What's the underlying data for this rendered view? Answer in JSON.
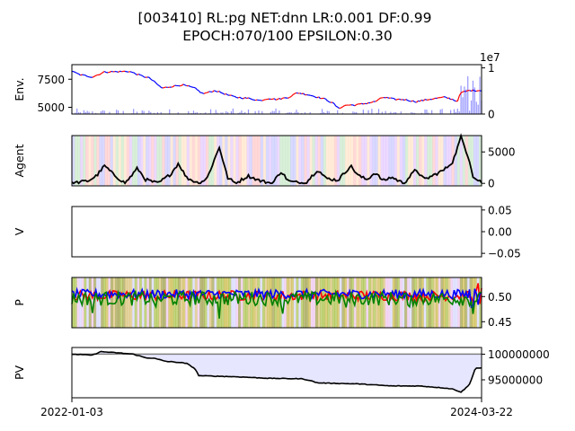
{
  "chart_data": {
    "type": "line",
    "title": "[003410] RL:pg NET:dnn LR:0.001 DF:0.99",
    "subtitle": "EPOCH:070/100 EPSILON:0.30",
    "x_ticks": [
      "2022-01-03",
      "2024-03-22"
    ],
    "colors": {
      "axis": "#000000",
      "up": "#ff0000",
      "down": "#0000ff",
      "volume": "#7a7aff",
      "value_line": "#000000",
      "p_red": "#ff0000",
      "p_blue": "#0000ff",
      "p_green": "#008000",
      "pv_fill": "#e6e6ff",
      "pv_ref": "#808080"
    },
    "panels": [
      {
        "id": "env",
        "ylabel": "Env.",
        "left_ticks": [
          "5000",
          "7500"
        ],
        "left_tick_values": [
          5000,
          7500
        ],
        "left_range": [
          4400,
          8800
        ],
        "right_ticks": [
          "0",
          "1"
        ],
        "right_tick_values": [
          0,
          1
        ],
        "right_range": [
          0,
          1.07
        ],
        "right_offset_label": "1e7",
        "price_anchors": [
          [
            0,
            8200
          ],
          [
            0.02,
            7900
          ],
          [
            0.05,
            7700
          ],
          [
            0.08,
            8150
          ],
          [
            0.14,
            8200
          ],
          [
            0.17,
            7800
          ],
          [
            0.19,
            7600
          ],
          [
            0.22,
            6700
          ],
          [
            0.25,
            6900
          ],
          [
            0.27,
            7000
          ],
          [
            0.3,
            6700
          ],
          [
            0.32,
            6200
          ],
          [
            0.35,
            6500
          ],
          [
            0.38,
            6100
          ],
          [
            0.4,
            5900
          ],
          [
            0.43,
            5800
          ],
          [
            0.46,
            5600
          ],
          [
            0.48,
            5800
          ],
          [
            0.5,
            5700
          ],
          [
            0.53,
            5900
          ],
          [
            0.55,
            6300
          ],
          [
            0.58,
            6100
          ],
          [
            0.6,
            5900
          ],
          [
            0.62,
            5700
          ],
          [
            0.64,
            5300
          ],
          [
            0.65,
            4900
          ],
          [
            0.67,
            5200
          ],
          [
            0.69,
            5200
          ],
          [
            0.71,
            5300
          ],
          [
            0.74,
            5500
          ],
          [
            0.76,
            5900
          ],
          [
            0.79,
            5700
          ],
          [
            0.81,
            5700
          ],
          [
            0.84,
            5500
          ],
          [
            0.87,
            5700
          ],
          [
            0.89,
            5800
          ],
          [
            0.91,
            5900
          ],
          [
            0.93,
            5700
          ],
          [
            0.94,
            5500
          ],
          [
            0.95,
            6300
          ],
          [
            0.97,
            6500
          ],
          [
            1.0,
            6500
          ]
        ],
        "volume_note": "volume bars scaled to 1e7"
      },
      {
        "id": "agent",
        "ylabel": "Agent",
        "right_ticks": [
          "0",
          "5000"
        ],
        "right_tick_values": [
          0,
          5000
        ],
        "right_range": [
          -400,
          7600
        ],
        "value_anchors": [
          [
            0,
            0
          ],
          [
            0.04,
            400
          ],
          [
            0.06,
            1200
          ],
          [
            0.08,
            2800
          ],
          [
            0.1,
            1500
          ],
          [
            0.13,
            0
          ],
          [
            0.16,
            2400
          ],
          [
            0.18,
            600
          ],
          [
            0.21,
            0
          ],
          [
            0.24,
            1400
          ],
          [
            0.26,
            3200
          ],
          [
            0.28,
            900
          ],
          [
            0.31,
            0
          ],
          [
            0.33,
            800
          ],
          [
            0.36,
            5800
          ],
          [
            0.38,
            900
          ],
          [
            0.4,
            0
          ],
          [
            0.43,
            1200
          ],
          [
            0.46,
            400
          ],
          [
            0.49,
            0
          ],
          [
            0.51,
            1900
          ],
          [
            0.53,
            300
          ],
          [
            0.57,
            0
          ],
          [
            0.6,
            2200
          ],
          [
            0.62,
            800
          ],
          [
            0.65,
            500
          ],
          [
            0.68,
            2800
          ],
          [
            0.7,
            1200
          ],
          [
            0.72,
            600
          ],
          [
            0.74,
            1700
          ],
          [
            0.76,
            400
          ],
          [
            0.78,
            1000
          ],
          [
            0.81,
            0
          ],
          [
            0.84,
            2200
          ],
          [
            0.86,
            600
          ],
          [
            0.88,
            1200
          ],
          [
            0.91,
            2200
          ],
          [
            0.93,
            3500
          ],
          [
            0.95,
            7400
          ],
          [
            0.97,
            3800
          ],
          [
            0.98,
            900
          ],
          [
            1.0,
            200
          ]
        ]
      },
      {
        "id": "v",
        "ylabel": "V",
        "right_ticks": [
          "−0.05",
          "0.00",
          "0.05"
        ],
        "right_tick_values": [
          -0.05,
          0,
          0.05
        ],
        "right_range": [
          -0.058,
          0.058
        ]
      },
      {
        "id": "p",
        "ylabel": "P",
        "right_ticks": [
          "0.45",
          "0.50"
        ],
        "right_tick_values": [
          0.45,
          0.5
        ],
        "right_range": [
          0.438,
          0.538
        ]
      },
      {
        "id": "pv",
        "ylabel": "PV",
        "right_ticks": [
          "95000000",
          "100000000"
        ],
        "right_tick_values": [
          95000000,
          100000000
        ],
        "right_range": [
          91500000,
          101300000
        ],
        "reference": 100000000,
        "pv_anchors": [
          [
            0,
            100000000
          ],
          [
            0.05,
            99800000
          ],
          [
            0.07,
            100500000
          ],
          [
            0.12,
            100200000
          ],
          [
            0.15,
            100000000
          ],
          [
            0.18,
            99300000
          ],
          [
            0.2,
            99200000
          ],
          [
            0.23,
            98600000
          ],
          [
            0.26,
            98400000
          ],
          [
            0.28,
            98200000
          ],
          [
            0.3,
            97200000
          ],
          [
            0.31,
            95800000
          ],
          [
            0.4,
            95600000
          ],
          [
            0.48,
            95300000
          ],
          [
            0.56,
            95200000
          ],
          [
            0.58,
            94900000
          ],
          [
            0.6,
            94400000
          ],
          [
            0.7,
            94200000
          ],
          [
            0.78,
            93800000
          ],
          [
            0.85,
            93800000
          ],
          [
            0.88,
            93600000
          ],
          [
            0.91,
            93400000
          ],
          [
            0.93,
            93200000
          ],
          [
            0.95,
            92600000
          ],
          [
            0.97,
            94000000
          ],
          [
            0.985,
            97300000
          ],
          [
            1.0,
            97300000
          ]
        ]
      }
    ]
  }
}
